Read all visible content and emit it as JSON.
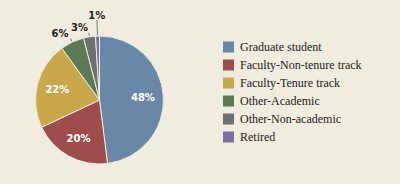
{
  "chart_data": {
    "type": "pie",
    "categories": [
      "Graduate student",
      "Faculty-Non-tenure track",
      "Faculty-Tenure track",
      "Other-Academic",
      "Other-Non-academic",
      "Retired"
    ],
    "values": [
      48,
      20,
      22,
      6,
      3,
      1
    ],
    "value_labels": [
      "48%",
      "20%",
      "22%",
      "6%",
      "3%",
      "1%"
    ],
    "colors": [
      "#6b87a8",
      "#9e4d4d",
      "#c9a84c",
      "#5a7a55",
      "#6b7070",
      "#7a6fa0"
    ],
    "data_labels": true,
    "legend": "right"
  }
}
